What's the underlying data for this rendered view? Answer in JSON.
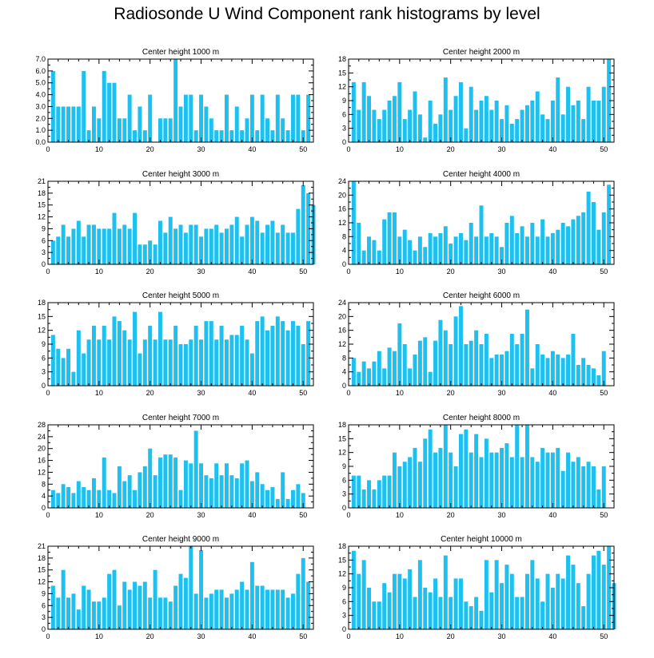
{
  "title": "Radiosonde U Wind Component rank histograms by level",
  "bar_color": "#1ec0f0",
  "chart_data": [
    {
      "type": "bar",
      "title": "Center height 1000 m",
      "ylim": [
        0,
        7.0
      ],
      "yticks": [
        0.0,
        1.0,
        2.0,
        3.0,
        4.0,
        5.0,
        6.0,
        7.0
      ],
      "ytick_labels": [
        "0.0",
        "1.0",
        "2.0",
        "3.0",
        "4.0",
        "5.0",
        "6.0",
        "7.0"
      ],
      "xticks": [
        0,
        10,
        20,
        30,
        40,
        50
      ],
      "values": [
        6,
        3,
        3,
        3,
        3,
        3,
        6,
        1,
        3,
        2,
        6,
        5,
        5,
        2,
        2,
        4,
        1,
        3,
        1,
        4,
        0,
        2,
        2,
        2,
        7,
        3,
        4,
        4,
        1,
        4,
        3,
        2,
        1,
        1,
        4,
        1,
        3,
        1,
        2,
        4,
        1,
        4,
        2,
        1,
        4,
        2,
        1,
        4,
        4,
        1,
        4
      ]
    },
    {
      "type": "bar",
      "title": "Center height 2000 m",
      "ylim": [
        0,
        18
      ],
      "yticks": [
        0,
        3,
        6,
        9,
        12,
        15,
        18
      ],
      "ytick_labels": [
        "0",
        "3",
        "6",
        "9",
        "12",
        "15",
        "18"
      ],
      "xticks": [
        0,
        10,
        20,
        30,
        40,
        50
      ],
      "values": [
        13,
        7,
        13,
        10,
        7,
        5,
        7,
        9,
        10,
        13,
        5,
        7,
        11,
        6,
        1,
        9,
        4,
        6,
        14,
        7,
        10,
        13,
        3,
        12,
        7,
        9,
        10,
        7,
        9,
        5,
        8,
        4,
        5,
        7,
        8,
        9,
        11,
        6,
        5,
        9,
        14,
        6,
        12,
        8,
        9,
        5,
        12,
        9,
        9,
        12,
        18
      ]
    },
    {
      "type": "bar",
      "title": "Center height 3000 m",
      "ylim": [
        0,
        21
      ],
      "yticks": [
        0,
        3,
        6,
        9,
        12,
        15,
        18,
        21
      ],
      "ytick_labels": [
        "0",
        "3",
        "6",
        "9",
        "12",
        "15",
        "18",
        "21"
      ],
      "xticks": [
        0,
        10,
        20,
        30,
        40,
        50
      ],
      "values": [
        6,
        7,
        10,
        7,
        9,
        11,
        7,
        10,
        10,
        9,
        9,
        9,
        13,
        9,
        10,
        9,
        13,
        5,
        5,
        6,
        5,
        11,
        8,
        12,
        9,
        10,
        8,
        10,
        10,
        7,
        9,
        9,
        10,
        8,
        9,
        10,
        12,
        7,
        10,
        12,
        11,
        8,
        10,
        11,
        8,
        10,
        8,
        8,
        14,
        20,
        18,
        15
      ]
    },
    {
      "type": "bar",
      "title": "Center height 4000 m",
      "ylim": [
        0,
        24
      ],
      "yticks": [
        0,
        4,
        8,
        12,
        16,
        20,
        24
      ],
      "ytick_labels": [
        "0",
        "4",
        "8",
        "12",
        "16",
        "20",
        "24"
      ],
      "xticks": [
        0,
        10,
        20,
        30,
        40,
        50
      ],
      "values": [
        24,
        12,
        4,
        8,
        7,
        4,
        13,
        15,
        15,
        8,
        10,
        7,
        4,
        8,
        5,
        9,
        8,
        9,
        11,
        6,
        8,
        9,
        7,
        12,
        8,
        17,
        8,
        9,
        8,
        5,
        12,
        14,
        9,
        11,
        8,
        12,
        8,
        13,
        8,
        9,
        10,
        12,
        11,
        13,
        14,
        15,
        21,
        18,
        10,
        15,
        23
      ]
    },
    {
      "type": "bar",
      "title": "Center height 5000 m",
      "ylim": [
        0,
        18
      ],
      "yticks": [
        0,
        3,
        6,
        9,
        12,
        15,
        18
      ],
      "ytick_labels": [
        "0",
        "3",
        "6",
        "9",
        "12",
        "15",
        "18"
      ],
      "xticks": [
        0,
        10,
        20,
        30,
        40,
        50
      ],
      "values": [
        11,
        8,
        6,
        8,
        3,
        12,
        7,
        10,
        13,
        10,
        13,
        10,
        15,
        14,
        12,
        10,
        16,
        7,
        10,
        13,
        10,
        16,
        10,
        10,
        13,
        9,
        9,
        10,
        13,
        10,
        14,
        14,
        10,
        13,
        10,
        11,
        11,
        13,
        10,
        7,
        14,
        15,
        12,
        13,
        15,
        14,
        12,
        14,
        13,
        9,
        14
      ]
    },
    {
      "type": "bar",
      "title": "Center height 6000 m",
      "ylim": [
        0,
        24
      ],
      "yticks": [
        0,
        4,
        8,
        12,
        16,
        20,
        24
      ],
      "ytick_labels": [
        "0",
        "4",
        "8",
        "12",
        "16",
        "20",
        "24"
      ],
      "xticks": [
        0,
        10,
        20,
        30,
        40,
        50
      ],
      "values": [
        8,
        4,
        7,
        5,
        7,
        10,
        5,
        11,
        10,
        18,
        12,
        5,
        9,
        13,
        14,
        4,
        13,
        19,
        16,
        12,
        20,
        23,
        12,
        13,
        16,
        12,
        15,
        8,
        9,
        9,
        10,
        15,
        12,
        15,
        22,
        5,
        12,
        9,
        8,
        10,
        9,
        8,
        9,
        15,
        6,
        8,
        6,
        5,
        3,
        10
      ]
    },
    {
      "type": "bar",
      "title": "Center height 7000 m",
      "ylim": [
        0,
        28
      ],
      "yticks": [
        0,
        4,
        8,
        12,
        16,
        20,
        24,
        28
      ],
      "ytick_labels": [
        "0",
        "4",
        "8",
        "12",
        "16",
        "20",
        "24",
        "28"
      ],
      "xticks": [
        0,
        10,
        20,
        30,
        40,
        50
      ],
      "values": [
        6,
        5,
        8,
        7,
        5,
        9,
        7,
        6,
        10,
        6,
        17,
        6,
        5,
        14,
        9,
        11,
        6,
        12,
        14,
        20,
        11,
        17,
        18,
        18,
        17,
        6,
        16,
        15,
        26,
        15,
        11,
        10,
        15,
        11,
        15,
        11,
        10,
        15,
        16,
        9,
        12,
        8,
        6,
        7,
        3,
        12,
        3,
        6,
        8,
        5
      ]
    },
    {
      "type": "bar",
      "title": "Center height 8000 m",
      "ylim": [
        0,
        18
      ],
      "yticks": [
        0,
        3,
        6,
        9,
        12,
        15,
        18
      ],
      "ytick_labels": [
        "0",
        "3",
        "6",
        "9",
        "12",
        "15",
        "18"
      ],
      "xticks": [
        0,
        10,
        20,
        30,
        40,
        50
      ],
      "values": [
        7,
        7,
        4,
        6,
        4,
        6,
        7,
        7,
        12,
        9,
        10,
        11,
        13,
        10,
        15,
        17,
        12,
        13,
        18,
        12,
        9,
        16,
        17,
        12,
        16,
        11,
        15,
        12,
        12,
        13,
        14,
        11,
        18,
        11,
        18,
        11,
        10,
        13,
        12,
        12,
        13,
        8,
        12,
        10,
        11,
        9,
        10,
        9,
        4,
        9
      ]
    },
    {
      "type": "bar",
      "title": "Center height 9000 m",
      "ylim": [
        0,
        21
      ],
      "yticks": [
        0,
        3,
        6,
        9,
        12,
        15,
        18,
        21
      ],
      "ytick_labels": [
        "0",
        "3",
        "6",
        "9",
        "12",
        "15",
        "18",
        "21"
      ],
      "xticks": [
        0,
        10,
        20,
        30,
        40,
        50
      ],
      "values": [
        11,
        8,
        15,
        8,
        9,
        5,
        11,
        10,
        7,
        7,
        8,
        14,
        15,
        6,
        12,
        10,
        12,
        11,
        12,
        8,
        15,
        8,
        8,
        7,
        11,
        14,
        13,
        21,
        9,
        20,
        8,
        9,
        10,
        10,
        8,
        9,
        10,
        12,
        10,
        17,
        11,
        11,
        10,
        10,
        10,
        10,
        8,
        9,
        14,
        18,
        12
      ]
    },
    {
      "type": "bar",
      "title": "Center height 10000 m",
      "ylim": [
        0,
        18
      ],
      "yticks": [
        0,
        3,
        6,
        9,
        12,
        15,
        18
      ],
      "ytick_labels": [
        "0",
        "3",
        "6",
        "9",
        "12",
        "15",
        "18"
      ],
      "xticks": [
        0,
        10,
        20,
        30,
        40,
        50
      ],
      "values": [
        17,
        12,
        15,
        9,
        6,
        6,
        10,
        8,
        12,
        12,
        11,
        13,
        7,
        15,
        9,
        8,
        11,
        7,
        16,
        7,
        11,
        11,
        6,
        5,
        7,
        4,
        15,
        8,
        15,
        10,
        14,
        12,
        7,
        7,
        12,
        15,
        11,
        6,
        12,
        9,
        12,
        11,
        16,
        14,
        10,
        5,
        12,
        16,
        17,
        14,
        18,
        10
      ]
    }
  ]
}
